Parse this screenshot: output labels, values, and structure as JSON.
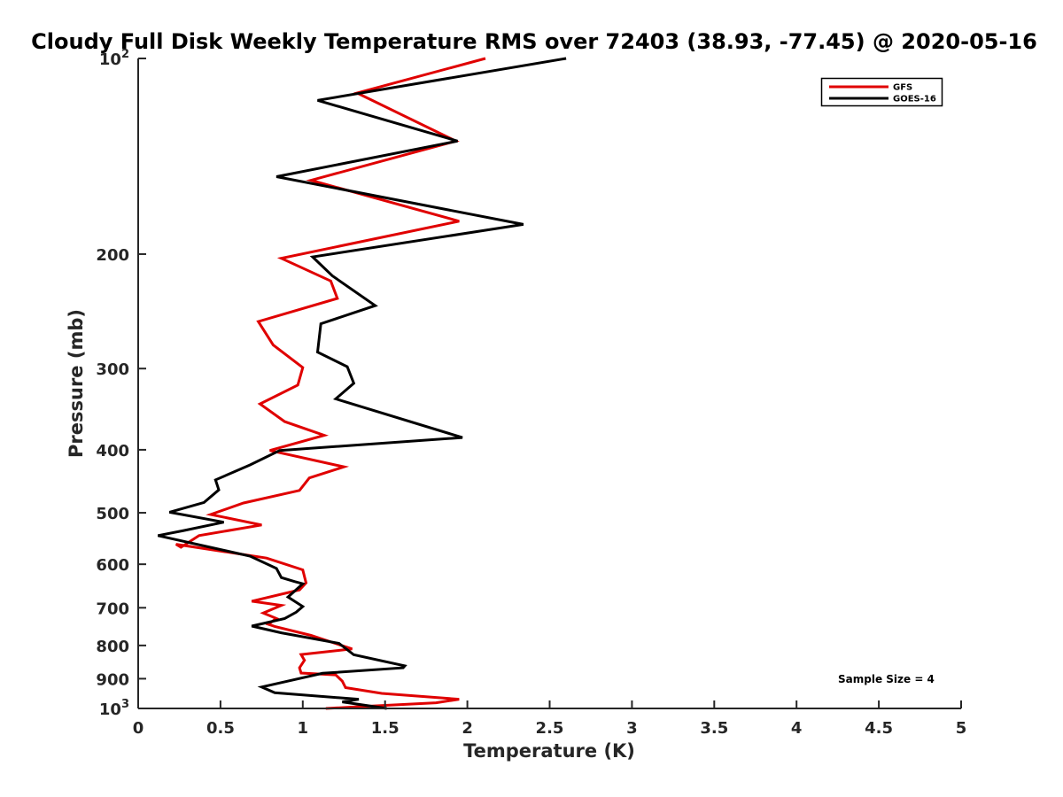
{
  "chart_data": {
    "type": "line",
    "title": "Cloudy Full Disk Weekly Temperature RMS over 72403 (38.93, -77.45) @ 2020-05-16",
    "xlabel": "Temperature (K)",
    "ylabel": "Pressure (mb)",
    "xlim": [
      0,
      5
    ],
    "ylim": [
      100,
      1000
    ],
    "yscale": "log",
    "y_reversed": true,
    "grid": false,
    "legend_position": "top-right",
    "x_ticks": [
      "0",
      "0.5",
      "1",
      "1.5",
      "2",
      "2.5",
      "3",
      "3.5",
      "4",
      "4.5",
      "5"
    ],
    "x_tick_values": [
      0,
      0.5,
      1,
      1.5,
      2,
      2.5,
      3,
      3.5,
      4,
      4.5,
      5
    ],
    "y_ticks": [
      {
        "value": 100,
        "base": "10",
        "exp": "2"
      },
      {
        "value": 200,
        "base": "200",
        "exp": ""
      },
      {
        "value": 300,
        "base": "300",
        "exp": ""
      },
      {
        "value": 400,
        "base": "400",
        "exp": ""
      },
      {
        "value": 500,
        "base": "500",
        "exp": ""
      },
      {
        "value": 600,
        "base": "600",
        "exp": ""
      },
      {
        "value": 700,
        "base": "700",
        "exp": ""
      },
      {
        "value": 800,
        "base": "800",
        "exp": ""
      },
      {
        "value": 900,
        "base": "900",
        "exp": ""
      },
      {
        "value": 1000,
        "base": "10",
        "exp": "3"
      }
    ],
    "annotation": "Sample Size = 4",
    "series": [
      {
        "name": "GFS",
        "color": "#e00000",
        "points": [
          [
            2.11,
            100
          ],
          [
            1.33,
            113
          ],
          [
            1.93,
            134
          ],
          [
            1.05,
            154
          ],
          [
            1.95,
            178
          ],
          [
            0.87,
            203
          ],
          [
            1.17,
            220
          ],
          [
            1.21,
            234
          ],
          [
            0.73,
            254
          ],
          [
            0.82,
            276
          ],
          [
            1.0,
            299
          ],
          [
            0.97,
            318
          ],
          [
            0.74,
            340
          ],
          [
            0.89,
            362
          ],
          [
            1.13,
            380
          ],
          [
            0.8,
            401
          ],
          [
            1.25,
            425
          ],
          [
            1.04,
            442
          ],
          [
            0.98,
            462
          ],
          [
            0.64,
            483
          ],
          [
            0.44,
            503
          ],
          [
            0.75,
            522
          ],
          [
            0.37,
            542
          ],
          [
            0.26,
            565
          ],
          [
            0.23,
            559
          ],
          [
            0.78,
            587
          ],
          [
            1.0,
            612
          ],
          [
            1.02,
            641
          ],
          [
            0.98,
            657
          ],
          [
            0.69,
            684
          ],
          [
            0.87,
            694
          ],
          [
            0.76,
            713
          ],
          [
            0.84,
            727
          ],
          [
            0.79,
            742
          ],
          [
            0.83,
            748
          ],
          [
            1.05,
            772
          ],
          [
            1.3,
            810
          ],
          [
            0.99,
            826
          ],
          [
            1.01,
            843
          ],
          [
            0.98,
            866
          ],
          [
            0.99,
            882
          ],
          [
            1.2,
            888
          ],
          [
            1.24,
            908
          ],
          [
            1.26,
            929
          ],
          [
            1.48,
            948
          ],
          [
            1.95,
            968
          ],
          [
            1.81,
            980
          ],
          [
            1.37,
            993
          ],
          [
            1.14,
            1000
          ]
        ]
      },
      {
        "name": "GOES-16",
        "color": "#000000",
        "points": [
          [
            2.6,
            100
          ],
          [
            1.09,
            116
          ],
          [
            1.94,
            134
          ],
          [
            0.84,
            152
          ],
          [
            2.34,
            180
          ],
          [
            1.06,
            202
          ],
          [
            1.18,
            216
          ],
          [
            1.44,
            240
          ],
          [
            1.11,
            256
          ],
          [
            1.09,
            283
          ],
          [
            1.27,
            298
          ],
          [
            1.31,
            316
          ],
          [
            1.2,
            334
          ],
          [
            1.97,
            383
          ],
          [
            0.86,
            401
          ],
          [
            0.68,
            422
          ],
          [
            0.47,
            445
          ],
          [
            0.49,
            461
          ],
          [
            0.4,
            482
          ],
          [
            0.19,
            499
          ],
          [
            0.52,
            517
          ],
          [
            0.27,
            533
          ],
          [
            0.12,
            542
          ],
          [
            0.68,
            583
          ],
          [
            0.84,
            609
          ],
          [
            0.87,
            629
          ],
          [
            0.95,
            638
          ],
          [
            1.0,
            643
          ],
          [
            0.91,
            674
          ],
          [
            1.0,
            697
          ],
          [
            0.96,
            711
          ],
          [
            0.89,
            727
          ],
          [
            0.69,
            747
          ],
          [
            0.87,
            765
          ],
          [
            1.22,
            794
          ],
          [
            1.31,
            827
          ],
          [
            1.62,
            860
          ],
          [
            1.61,
            866
          ],
          [
            1.12,
            883
          ],
          [
            0.75,
            927
          ],
          [
            0.83,
            946
          ],
          [
            1.34,
            968
          ],
          [
            1.24,
            977
          ],
          [
            1.51,
            1000
          ]
        ]
      }
    ]
  }
}
